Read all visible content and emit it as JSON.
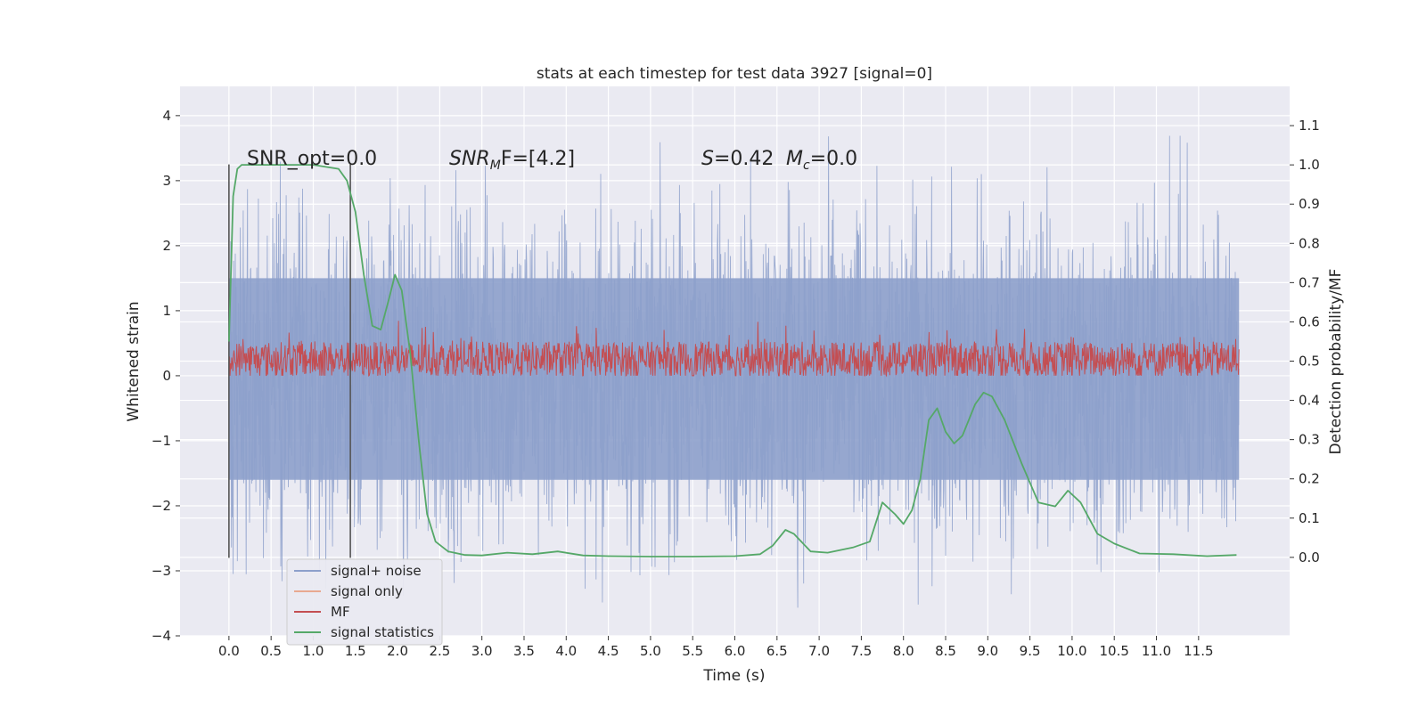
{
  "chart_data": {
    "type": "line",
    "title": "stats at each timestep for test data 3927 [signal=0]",
    "xlabel": "Time (s)",
    "ylabel_left": "Whitened strain",
    "ylabel_right": "Detection probability/MF",
    "xlim": [
      -0.58,
      12.58
    ],
    "ylim_left": [
      -4,
      4.45
    ],
    "ylim_right": [
      -0.2,
      1.2
    ],
    "x_ticks": [
      "0.0",
      "0.5",
      "1.0",
      "1.5",
      "2.0",
      "2.5",
      "3.0",
      "3.5",
      "4.0",
      "4.5",
      "5.0",
      "5.5",
      "6.0",
      "6.5",
      "7.0",
      "7.5",
      "8.0",
      "8.5",
      "9.0",
      "9.5",
      "10.0",
      "10.5",
      "11.0",
      "11.5"
    ],
    "y_left_ticks": [
      "−4",
      "−3",
      "−2",
      "−1",
      "0",
      "1",
      "2",
      "3",
      "4"
    ],
    "y_right_ticks": [
      "0.0",
      "0.1",
      "0.2",
      "0.3",
      "0.4",
      "0.5",
      "0.6",
      "0.7",
      "0.8",
      "0.9",
      "1.0",
      "1.1"
    ],
    "grid": true,
    "legend_position": "lower-left",
    "annotations": {
      "snr_opt": "SNR_opt=0.0",
      "snr_mf_main": "SNR",
      "snr_mf_sub": "M",
      "snr_mf_rest": "F=[4.2]",
      "s_italic": "S",
      "s_rest": "=0.42",
      "mc_main": "M",
      "mc_sub": "c",
      "mc_rest": "=0.0"
    },
    "vlines_x": [
      0.0,
      1.44
    ],
    "series": [
      {
        "name": "signal+ noise",
        "color": "#8da0cb",
        "note": "dense noise, amplitude roughly ±1.5 to ±3.5",
        "envelope_upper": 1.5,
        "envelope_lower": -1.6,
        "spike_max": 4.1,
        "spike_min": -3.65
      },
      {
        "name": "signal only",
        "color": "#e8a990",
        "values": []
      },
      {
        "name": "MF",
        "color": "#c44e52",
        "range": [
          0.0,
          0.9
        ]
      },
      {
        "name": "signal statistics",
        "color": "#55a868",
        "x": [
          0.0,
          0.05,
          0.1,
          0.15,
          0.25,
          0.5,
          1.0,
          1.3,
          1.4,
          1.5,
          1.6,
          1.7,
          1.8,
          1.9,
          1.97,
          2.05,
          2.15,
          2.25,
          2.35,
          2.45,
          2.6,
          2.8,
          3.0,
          3.3,
          3.6,
          3.9,
          4.2,
          4.5,
          5.0,
          5.5,
          6.0,
          6.3,
          6.45,
          6.6,
          6.7,
          6.9,
          7.1,
          7.4,
          7.6,
          7.75,
          7.9,
          8.0,
          8.1,
          8.2,
          8.3,
          8.4,
          8.5,
          8.6,
          8.7,
          8.85,
          8.95,
          9.05,
          9.2,
          9.4,
          9.6,
          9.8,
          9.95,
          10.1,
          10.3,
          10.5,
          10.8,
          11.2,
          11.6,
          11.95
        ],
        "values": [
          0.55,
          0.92,
          0.99,
          1.0,
          1.0,
          1.0,
          1.0,
          0.99,
          0.96,
          0.88,
          0.72,
          0.59,
          0.58,
          0.66,
          0.72,
          0.68,
          0.52,
          0.3,
          0.11,
          0.04,
          0.015,
          0.006,
          0.005,
          0.012,
          0.008,
          0.015,
          0.005,
          0.003,
          0.002,
          0.002,
          0.003,
          0.008,
          0.03,
          0.07,
          0.06,
          0.015,
          0.012,
          0.025,
          0.04,
          0.14,
          0.11,
          0.085,
          0.12,
          0.2,
          0.35,
          0.38,
          0.32,
          0.29,
          0.31,
          0.39,
          0.42,
          0.41,
          0.35,
          0.24,
          0.14,
          0.13,
          0.17,
          0.14,
          0.06,
          0.035,
          0.01,
          0.008,
          0.003,
          0.006
        ]
      }
    ]
  }
}
